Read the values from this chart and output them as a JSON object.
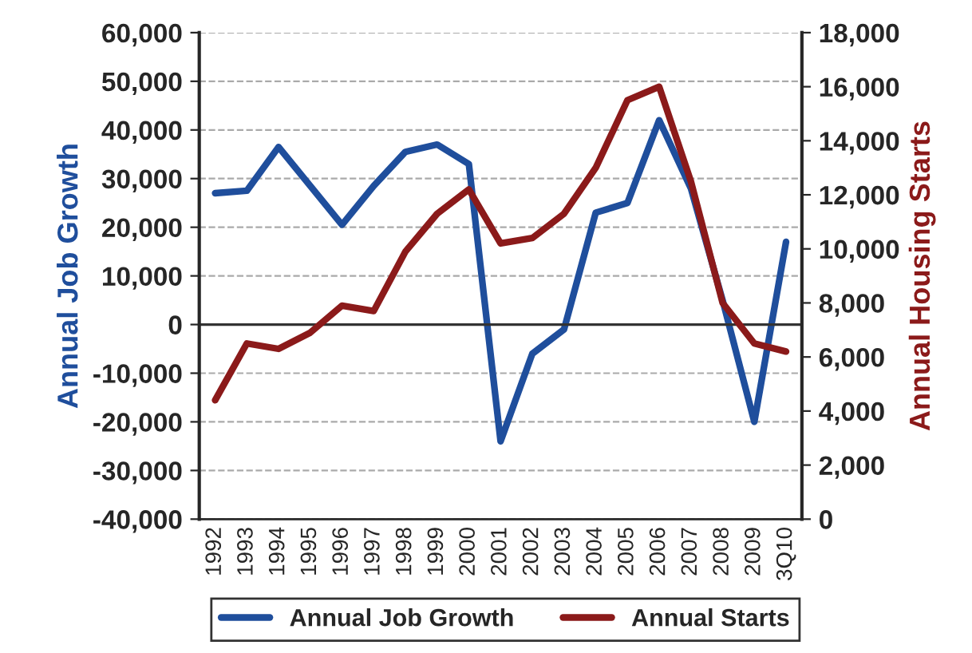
{
  "chart_data": {
    "type": "line",
    "ylabel": "Annual Job Growth",
    "y2label": "Annual Housing Starts",
    "categories": [
      "1992",
      "1993",
      "1994",
      "1995",
      "1996",
      "1997",
      "1998",
      "1999",
      "2000",
      "2001",
      "2002",
      "2003",
      "2004",
      "2005",
      "2006",
      "2007",
      "2008",
      "2009",
      "3Q10"
    ],
    "series": [
      {
        "name": "Annual Job Growth",
        "color": "#1f4e9c",
        "values": [
          27000,
          27500,
          36500,
          28500,
          20500,
          28500,
          35500,
          37000,
          33000,
          -24000,
          -6000,
          -1000,
          23000,
          25000,
          42000,
          28000,
          5000,
          -20000,
          17000
        ]
      },
      {
        "name": "Annual Starts",
        "color": "#8b1a1a",
        "axis": "y2",
        "values": [
          4400,
          6500,
          6300,
          6900,
          7900,
          7700,
          9900,
          11300,
          12200,
          10200,
          10400,
          11300,
          13000,
          15500,
          16000,
          12500,
          8000,
          6500,
          6200
        ]
      }
    ],
    "ylim": [
      -40000,
      60000
    ],
    "yticks": [
      {
        "value": -40000,
        "label": "-40,000"
      },
      {
        "value": -30000,
        "label": "-30,000"
      },
      {
        "value": -20000,
        "label": "-20,000"
      },
      {
        "value": -10000,
        "label": "-10,000"
      },
      {
        "value": 0,
        "label": "0"
      },
      {
        "value": 10000,
        "label": "10,000"
      },
      {
        "value": 20000,
        "label": "20,000"
      },
      {
        "value": 30000,
        "label": "30,000"
      },
      {
        "value": 40000,
        "label": "40,000"
      },
      {
        "value": 50000,
        "label": "50,000"
      },
      {
        "value": 60000,
        "label": "60,000"
      }
    ],
    "y2lim": [
      0,
      18000
    ],
    "y2ticks": [
      0,
      {
        "value": 2000,
        "label": "2,000"
      },
      {
        "value": 4000,
        "label": "4,000"
      },
      {
        "value": 6000,
        "label": "6,000"
      },
      {
        "value": 8000,
        "label": "8,000"
      },
      {
        "value": 10000,
        "label": "10,000"
      },
      {
        "value": 12000,
        "label": "12,000"
      },
      {
        "value": 14000,
        "label": "14,000"
      },
      {
        "value": 16000,
        "label": "16,000"
      },
      {
        "value": 18000,
        "label": "18,000"
      }
    ],
    "grid": "y",
    "legend": "bottom",
    "marker": "none",
    "line_style": "solid"
  }
}
